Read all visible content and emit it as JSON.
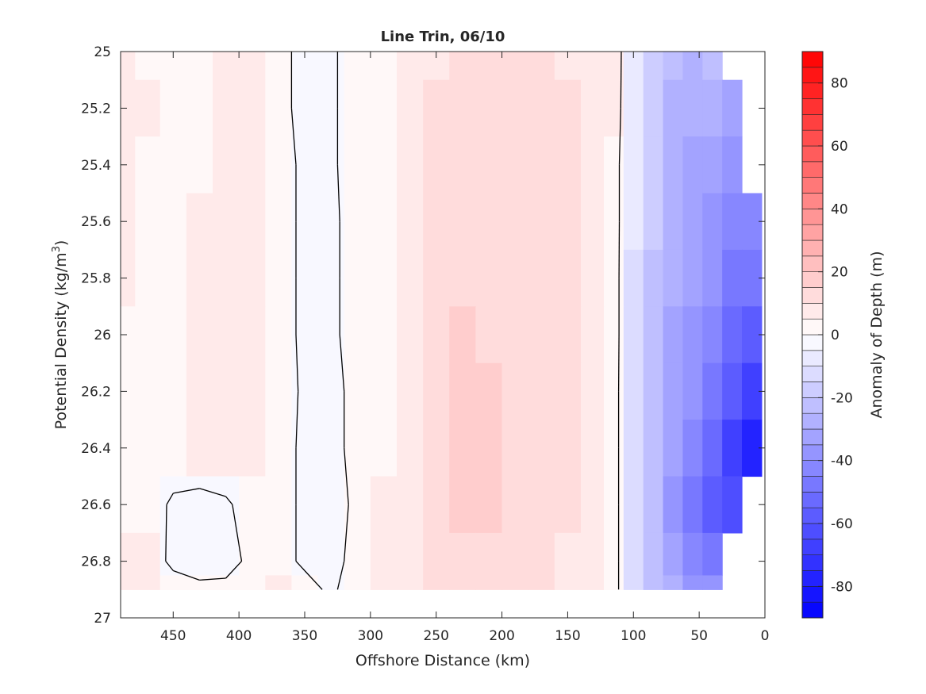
{
  "chart_data": {
    "type": "heatmap",
    "title": "Line Trin, 06/10",
    "xlabel": "Offshore Distance (km)",
    "ylabel": "Potential Density (kg/m",
    "ylabel_superscript": "3",
    "ylabel_close": ")",
    "colorbar_label": "Anomaly of Depth (m)",
    "x_axis_reversed": true,
    "y_axis_reversed": true,
    "xlim": [
      0,
      490
    ],
    "ylim": [
      25,
      27
    ],
    "x_ticks": [
      450,
      400,
      350,
      300,
      250,
      200,
      150,
      100,
      50,
      0
    ],
    "x_tick_labels": [
      "450",
      "400",
      "350",
      "300",
      "250",
      "200",
      "150",
      "100",
      "50",
      "0"
    ],
    "y_ticks": [
      25,
      25.2,
      25.4,
      25.6,
      25.8,
      26,
      26.2,
      26.4,
      26.6,
      26.8,
      27
    ],
    "y_tick_labels": [
      "25",
      "25.2",
      "25.4",
      "25.6",
      "25.8",
      "26",
      "26.2",
      "26.4",
      "26.6",
      "26.8",
      "27"
    ],
    "clim": [
      -90,
      90
    ],
    "colorbar_ticks": [
      80,
      60,
      40,
      20,
      0,
      -20,
      -40,
      -60,
      -80
    ],
    "colorbar_tick_labels": [
      "80",
      "60",
      "40",
      "20",
      "0",
      "-20",
      "-40",
      "-60",
      "-80"
    ],
    "colorbar_levels": 36,
    "colormap": {
      "negative": "#0000ff",
      "zero": "#ffffff",
      "positive": "#ff0000"
    },
    "contour_levels": [
      0
    ],
    "contour_color": "#000000",
    "distance_km": [
      488,
      470,
      450,
      430,
      410,
      390,
      370,
      350,
      330,
      310,
      290,
      270,
      250,
      230,
      210,
      190,
      170,
      150,
      130,
      115,
      100,
      85,
      70,
      55,
      40,
      25,
      10
    ],
    "density": [
      25.0,
      25.2,
      25.4,
      25.6,
      25.8,
      26.0,
      26.2,
      26.4,
      26.6,
      26.8,
      26.9
    ],
    "anomaly_m": [
      [
        6,
        4,
        2,
        2,
        8,
        8,
        2,
        -2,
        -1,
        3,
        4,
        6,
        9,
        10,
        11,
        11,
        10,
        9,
        8,
        5,
        -8,
        -16,
        -24,
        -28,
        -22,
        null,
        null
      ],
      [
        8,
        5,
        3,
        3,
        9,
        8,
        2,
        -2,
        -1,
        3,
        4,
        6,
        10,
        11,
        12,
        12,
        11,
        10,
        8,
        5,
        -9,
        -18,
        -26,
        -30,
        -30,
        -32,
        null
      ],
      [
        6,
        4,
        3,
        4,
        9,
        8,
        2,
        -1,
        -1,
        3,
        4,
        6,
        11,
        13,
        14,
        13,
        12,
        10,
        8,
        4,
        -10,
        -19,
        -28,
        -32,
        -34,
        -36,
        null
      ],
      [
        5,
        4,
        4,
        5,
        9,
        8,
        2,
        -1,
        -1,
        2,
        4,
        7,
        12,
        14,
        14,
        13,
        12,
        10,
        8,
        4,
        -10,
        -20,
        -30,
        -34,
        -38,
        -42,
        -44
      ],
      [
        5,
        4,
        4,
        6,
        9,
        7,
        2,
        -1,
        -1,
        2,
        2,
        6,
        12,
        14,
        14,
        13,
        12,
        10,
        8,
        4,
        -11,
        -21,
        -30,
        -35,
        -40,
        -46,
        -50
      ],
      [
        4,
        3,
        4,
        6,
        8,
        6,
        2,
        -1,
        -1,
        2,
        4,
        7,
        12,
        15,
        14,
        13,
        11,
        10,
        8,
        4,
        -11,
        -22,
        -32,
        -37,
        -42,
        -52,
        -58
      ],
      [
        4,
        3,
        2,
        5,
        7,
        6,
        3,
        -1,
        -1,
        1,
        4,
        7,
        13,
        16,
        15,
        13,
        11,
        10,
        7,
        4,
        -12,
        -23,
        -33,
        -40,
        -48,
        -60,
        -68
      ],
      [
        3,
        3,
        4,
        5,
        6,
        5,
        2,
        -1,
        -1,
        1,
        4,
        7,
        13,
        17,
        15,
        13,
        14,
        10,
        7,
        4,
        -12,
        -24,
        -35,
        -44,
        -54,
        -68,
        -78
      ],
      [
        3,
        3,
        -1,
        -2,
        -1,
        3,
        2,
        -1,
        -2,
        1,
        5,
        8,
        13,
        16,
        15,
        13,
        11,
        10,
        7,
        4,
        -12,
        -24,
        -36,
        -46,
        -56,
        -62,
        null
      ],
      [
        5,
        5,
        -2,
        -4,
        -3,
        2,
        2,
        -1,
        -2,
        2,
        5,
        8,
        12,
        14,
        13,
        12,
        10,
        9,
        7,
        4,
        -12,
        -24,
        -34,
        -42,
        -48,
        null,
        null
      ],
      [
        6,
        6,
        4,
        2,
        2,
        4,
        5,
        2,
        -1,
        3,
        5,
        8,
        11,
        12,
        12,
        11,
        10,
        9,
        7,
        4,
        -12,
        -22,
        -30,
        -36,
        -40,
        null,
        null
      ]
    ]
  }
}
